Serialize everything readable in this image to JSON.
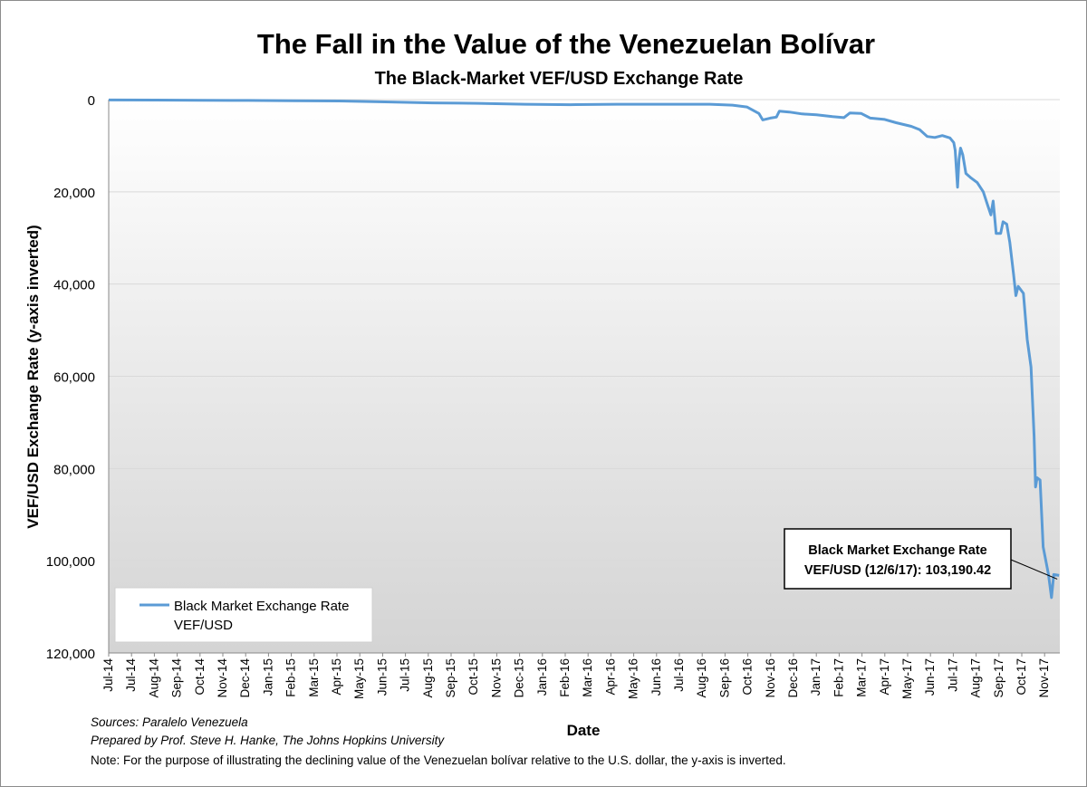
{
  "chart_data": {
    "type": "line",
    "title": "The Fall in the Value of the Venezuelan Bolívar",
    "subtitle": "The Black-Market VEF/USD Exchange Rate",
    "xlabel": "Date",
    "ylabel": "VEF/USD Exchange Rate (y-axis inverted)",
    "y_inverted": true,
    "ylim": [
      0,
      120000
    ],
    "yticks": [
      0,
      20000,
      40000,
      60000,
      80000,
      100000,
      120000
    ],
    "ytick_labels": [
      "0",
      "20,000",
      "40,000",
      "60,000",
      "80,000",
      "100,000",
      "120,000"
    ],
    "grid": true,
    "legend_position": "bottom-left",
    "x_start": "2014-07-01",
    "x_end": "2017-12-07",
    "xtick_labels": [
      "Jul-14",
      "Jul-14",
      "Aug-14",
      "Sep-14",
      "Oct-14",
      "Nov-14",
      "Dec-14",
      "Jan-15",
      "Feb-15",
      "Mar-15",
      "Apr-15",
      "May-15",
      "Jun-15",
      "Jul-15",
      "Aug-15",
      "Sep-15",
      "Oct-15",
      "Nov-15",
      "Dec-15",
      "Jan-16",
      "Feb-16",
      "Mar-16",
      "Apr-16",
      "May-16",
      "Jun-16",
      "Jul-16",
      "Aug-16",
      "Sep-16",
      "Oct-16",
      "Nov-16",
      "Dec-16",
      "Jan-17",
      "Feb-17",
      "Mar-17",
      "Apr-17",
      "May-17",
      "Jun-17",
      "Jul-17",
      "Aug-17",
      "Sep-17",
      "Oct-17",
      "Nov-17"
    ],
    "series": [
      {
        "name": "Black Market Exchange Rate VEF/USD",
        "legend_line1": "Black Market Exchange Rate",
        "legend_line2": "VEF/USD",
        "color": "#5b9bd5",
        "points": [
          [
            "2014-07-01",
            70
          ],
          [
            "2014-09-01",
            100
          ],
          [
            "2014-11-01",
            130
          ],
          [
            "2015-01-01",
            180
          ],
          [
            "2015-03-01",
            250
          ],
          [
            "2015-05-01",
            300
          ],
          [
            "2015-07-01",
            500
          ],
          [
            "2015-09-01",
            700
          ],
          [
            "2015-11-01",
            800
          ],
          [
            "2016-01-01",
            1000
          ],
          [
            "2016-03-01",
            1100
          ],
          [
            "2016-05-01",
            1000
          ],
          [
            "2016-07-01",
            1000
          ],
          [
            "2016-09-01",
            1000
          ],
          [
            "2016-10-01",
            1200
          ],
          [
            "2016-10-20",
            1600
          ],
          [
            "2016-11-05",
            3000
          ],
          [
            "2016-11-10",
            4400
          ],
          [
            "2016-11-20",
            4000
          ],
          [
            "2016-11-28",
            3800
          ],
          [
            "2016-12-02",
            2500
          ],
          [
            "2016-12-15",
            2700
          ],
          [
            "2017-01-01",
            3100
          ],
          [
            "2017-01-20",
            3300
          ],
          [
            "2017-02-10",
            3700
          ],
          [
            "2017-02-25",
            3900
          ],
          [
            "2017-03-05",
            2900
          ],
          [
            "2017-03-20",
            3000
          ],
          [
            "2017-04-01",
            4000
          ],
          [
            "2017-04-20",
            4300
          ],
          [
            "2017-05-05",
            5000
          ],
          [
            "2017-05-25",
            5800
          ],
          [
            "2017-06-05",
            6500
          ],
          [
            "2017-06-15",
            8000
          ],
          [
            "2017-06-25",
            8200
          ],
          [
            "2017-07-05",
            7800
          ],
          [
            "2017-07-15",
            8300
          ],
          [
            "2017-07-20",
            9300
          ],
          [
            "2017-07-22",
            11000
          ],
          [
            "2017-07-25",
            19000
          ],
          [
            "2017-07-27",
            13000
          ],
          [
            "2017-07-29",
            10500
          ],
          [
            "2017-08-01",
            12000
          ],
          [
            "2017-08-05",
            16000
          ],
          [
            "2017-08-12",
            17000
          ],
          [
            "2017-08-20",
            18000
          ],
          [
            "2017-08-28",
            20000
          ],
          [
            "2017-09-03",
            23000
          ],
          [
            "2017-09-07",
            25000
          ],
          [
            "2017-09-10",
            22000
          ],
          [
            "2017-09-14",
            29000
          ],
          [
            "2017-09-20",
            29000
          ],
          [
            "2017-09-23",
            26500
          ],
          [
            "2017-09-28",
            27000
          ],
          [
            "2017-10-02",
            31000
          ],
          [
            "2017-10-07",
            38000
          ],
          [
            "2017-10-10",
            42500
          ],
          [
            "2017-10-13",
            40500
          ],
          [
            "2017-10-20",
            42000
          ],
          [
            "2017-10-25",
            52000
          ],
          [
            "2017-10-30",
            58000
          ],
          [
            "2017-11-03",
            73000
          ],
          [
            "2017-11-05",
            84000
          ],
          [
            "2017-11-07",
            82000
          ],
          [
            "2017-11-11",
            82500
          ],
          [
            "2017-11-15",
            97000
          ],
          [
            "2017-11-22",
            103000
          ],
          [
            "2017-11-26",
            108000
          ],
          [
            "2017-11-29",
            103000
          ],
          [
            "2017-12-06",
            103190.42
          ]
        ]
      }
    ],
    "annotation": {
      "line1": "Black Market Exchange Rate",
      "line2": "VEF/USD (12/6/17): 103,190.42",
      "date": "2017-12-06",
      "value": 103190.42
    }
  },
  "notes": {
    "sources": "Sources: Paralelo Venezuela",
    "prepared": "Prepared by Prof. Steve H. Hanke, The Johns Hopkins University",
    "note": "Note: For the purpose of illustrating the declining value of the Venezuelan bolívar relative to the U.S. dollar, the y-axis is inverted."
  }
}
